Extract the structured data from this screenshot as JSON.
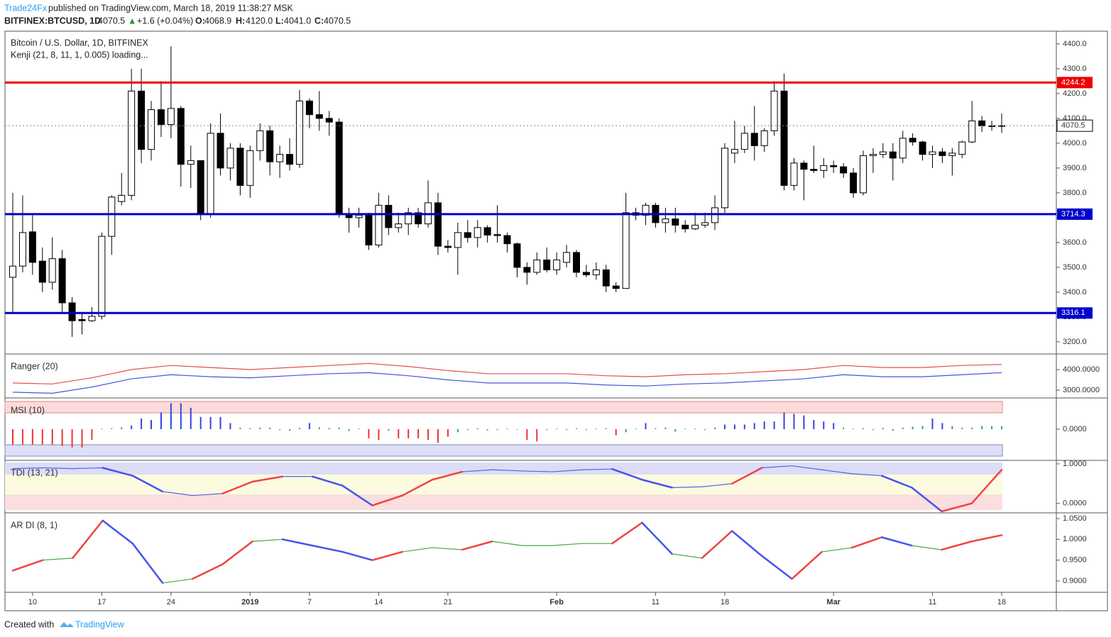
{
  "header": {
    "publisher": "Trade24Fx",
    "published": "published on TradingView.com, March 18, 2019 11:38:27 MSK",
    "symbol": "BITFINEX:BTCUSD, 1D",
    "last": "4070.5",
    "arrow": "▲",
    "change": "+1.6 (+0.04%)",
    "o_label": "O:",
    "o": "4068.9",
    "h_label": "H:",
    "h": "4120.0",
    "l_label": "L:",
    "l": "4041.0",
    "c_label": "C:",
    "c": "4070.5"
  },
  "legend": {
    "name": "Bitcoin / U.S. Dollar, 1D, BITFINEX",
    "study": "Kenji (21, 8, 11, 1, 0.005) loading..."
  },
  "footer": {
    "created": "Created with",
    "brand": "TradingView"
  },
  "chart_data": {
    "type": "candlestick",
    "categories": [
      null,
      null,
      "10",
      null,
      null,
      null,
      null,
      null,
      null,
      "17",
      null,
      null,
      null,
      null,
      null,
      null,
      "24",
      null,
      null,
      null,
      null,
      null,
      null,
      null,
      "2019",
      null,
      null,
      null,
      null,
      null,
      "7",
      null,
      null,
      null,
      null,
      null,
      null,
      "14",
      null,
      null,
      null,
      null,
      null,
      null,
      "21",
      null,
      null,
      null,
      null,
      null,
      null,
      null,
      null,
      null,
      null,
      "Feb",
      null,
      null,
      null,
      null,
      null,
      null,
      null,
      null,
      null,
      "11",
      null,
      null,
      null,
      null,
      null,
      null,
      "18",
      null,
      null,
      null,
      null,
      null,
      null,
      null,
      null,
      null,
      null,
      "Mar",
      null,
      null,
      null,
      null,
      null,
      null,
      null,
      null,
      null,
      "11",
      null,
      null,
      null,
      null,
      null,
      null,
      "18"
    ],
    "open": [
      3460,
      3505,
      3643,
      3525,
      3440,
      3535,
      3357,
      3290,
      3285,
      3303,
      3625,
      3765,
      3790,
      4210,
      3975,
      4135,
      4075,
      4140,
      3915,
      3930,
      3715,
      4040,
      3900,
      3980,
      3830,
      3970,
      4050,
      3925,
      3955,
      3915,
      4170,
      4115,
      4100,
      4085,
      3715,
      3700,
      3710,
      3590,
      3750,
      3660,
      3675,
      3720,
      3675,
      3760,
      3585,
      3580,
      3640,
      3620,
      3660,
      3632,
      3628,
      3595,
      3500,
      3480,
      3530,
      3490,
      3520,
      3560,
      3480,
      3470,
      3490,
      3425,
      3415,
      3720,
      3710,
      3750,
      3680,
      3695,
      3670,
      3655,
      3670,
      3680,
      3740,
      3960,
      3975,
      4040,
      3990,
      4050,
      4210,
      3830,
      3920,
      3895,
      3890,
      3910,
      3905,
      3880,
      3800,
      3950,
      3955,
      3965,
      3940,
      4020,
      4005,
      3955,
      3965,
      3950,
      3955,
      4005,
      4090,
      4070,
      4068.9
    ],
    "high": [
      3800,
      3790,
      3710,
      3580,
      3620,
      3570,
      3380,
      3320,
      3340,
      3640,
      3790,
      3880,
      4300,
      4300,
      4170,
      4250,
      4390,
      4150,
      3990,
      3930,
      4080,
      4120,
      4000,
      4000,
      3990,
      4080,
      4070,
      3990,
      4020,
      4215,
      4180,
      4210,
      4130,
      4100,
      3740,
      3740,
      3720,
      3800,
      3790,
      3720,
      3740,
      3740,
      3850,
      3800,
      3610,
      3680,
      3690,
      3690,
      3670,
      3750,
      3640,
      3600,
      3520,
      3560,
      3580,
      3560,
      3590,
      3570,
      3510,
      3520,
      3510,
      3440,
      3800,
      3740,
      3760,
      3760,
      3740,
      3740,
      3690,
      3720,
      3720,
      3790,
      4000,
      4090,
      4070,
      4150,
      4060,
      4250,
      4280,
      3940,
      3930,
      3990,
      3940,
      3930,
      3920,
      3900,
      3970,
      3980,
      4000,
      4000,
      4050,
      4040,
      4010,
      3990,
      3980,
      3980,
      4010,
      4170,
      4110,
      4090,
      4120
    ],
    "low": [
      3320,
      3480,
      3470,
      3400,
      3410,
      3320,
      3220,
      3230,
      3280,
      3290,
      3550,
      3750,
      3770,
      3920,
      3930,
      4025,
      4020,
      3825,
      3820,
      3690,
      3700,
      3870,
      3850,
      3790,
      3780,
      3930,
      3870,
      3860,
      3890,
      3900,
      4060,
      4050,
      4030,
      3700,
      3640,
      3660,
      3570,
      3580,
      3630,
      3640,
      3630,
      3660,
      3660,
      3550,
      3560,
      3470,
      3600,
      3580,
      3600,
      3600,
      3560,
      3460,
      3430,
      3470,
      3480,
      3470,
      3500,
      3460,
      3460,
      3450,
      3400,
      3400,
      3420,
      3690,
      3670,
      3660,
      3640,
      3640,
      3640,
      3650,
      3660,
      3650,
      3720,
      3920,
      3960,
      3930,
      3965,
      4030,
      3810,
      3810,
      3770,
      3880,
      3860,
      3880,
      3860,
      3780,
      3790,
      3880,
      3940,
      3850,
      3920,
      3990,
      3930,
      3900,
      3920,
      3870,
      3940,
      4000,
      4045,
      4050,
      4041
    ],
    "close": [
      3505,
      3640,
      3520,
      3440,
      3535,
      3357,
      3285,
      3285,
      3303,
      3625,
      3783,
      3790,
      4210,
      3975,
      4135,
      4075,
      4140,
      3915,
      3930,
      3715,
      4040,
      3900,
      3980,
      3830,
      3970,
      4050,
      3925,
      3955,
      3915,
      4170,
      4115,
      4100,
      4085,
      3715,
      3700,
      3710,
      3590,
      3750,
      3660,
      3675,
      3720,
      3675,
      3760,
      3585,
      3580,
      3640,
      3620,
      3660,
      3630,
      3628,
      3595,
      3500,
      3480,
      3530,
      3490,
      3530,
      3560,
      3480,
      3470,
      3490,
      3425,
      3415,
      3720,
      3710,
      3750,
      3680,
      3695,
      3670,
      3655,
      3670,
      3680,
      3740,
      3980,
      3975,
      4040,
      3990,
      4050,
      4210,
      3830,
      3920,
      3895,
      3890,
      3910,
      3905,
      3880,
      3800,
      3950,
      3955,
      3965,
      3940,
      4020,
      4005,
      3955,
      3965,
      3950,
      3960,
      4005,
      4090,
      4070,
      4069,
      4070.5
    ],
    "ylim": [
      3154,
      4451
    ],
    "yticks": [
      {
        "value": 4400,
        "label": "4400.0"
      },
      {
        "value": 4300,
        "label": "4300.0"
      },
      {
        "value": 4200,
        "label": "4200.0"
      },
      {
        "value": 4100,
        "label": "4100.0"
      },
      {
        "value": 4000,
        "label": "4000.0"
      },
      {
        "value": 3900,
        "label": "3900.0"
      },
      {
        "value": 3800,
        "label": "3800.0"
      },
      {
        "value": 3700,
        "label": "3700.0"
      },
      {
        "value": 3600,
        "label": "3600.0"
      },
      {
        "value": 3500,
        "label": "3500.0"
      },
      {
        "value": 3400,
        "label": "3400.0"
      },
      {
        "value": 3300,
        "label": "3300.0"
      },
      {
        "value": 3200,
        "label": "3200.0"
      }
    ],
    "levels": [
      {
        "value": 4244.2,
        "color": "#ee0000"
      },
      {
        "value": 3714.3,
        "color": "#0000cc"
      },
      {
        "value": 3316.1,
        "color": "#0000cc"
      }
    ],
    "current": 4070.5,
    "up_color": "#ffffff",
    "down_color": "#000000",
    "indicators": [
      {
        "name": "Ranger (20)",
        "kind": "lines",
        "ylim": [
          2655,
          4724
        ],
        "yticks": [
          {
            "value": 4000,
            "label": "4000.0000"
          },
          {
            "value": 3000,
            "label": "3000.0000"
          }
        ],
        "series": [
          {
            "color": "#e05050",
            "values": [
              3350,
              3300,
              3600,
              4000,
              4200,
              4100,
              4000,
              4100,
              4200,
              4300,
              4150,
              3950,
              3800,
              3800,
              3800,
              3700,
              3650,
              3750,
              3800,
              3900,
              4000,
              4200,
              4100,
              4100,
              4200,
              4250
            ]
          },
          {
            "color": "#4455dd",
            "values": [
              2900,
              2850,
              3150,
              3550,
              3750,
              3650,
              3600,
              3700,
              3800,
              3850,
              3700,
              3500,
              3350,
              3350,
              3350,
              3250,
              3200,
              3300,
              3350,
              3450,
              3550,
              3750,
              3650,
              3650,
              3750,
              3850
            ]
          }
        ]
      },
      {
        "name": "MSI (10)",
        "kind": "histogram",
        "ylim": [
          -1,
          1
        ],
        "yticks": [
          {
            "value": 0,
            "label": "0.0000"
          }
        ],
        "values": [
          -0.5,
          -0.5,
          -0.5,
          -0.5,
          -0.5,
          -0.55,
          -0.6,
          -0.6,
          -0.35,
          0.02,
          0.03,
          0.06,
          0.12,
          0.35,
          0.3,
          0.55,
          0.85,
          0.85,
          0.7,
          0.4,
          0.4,
          0.4,
          0.2,
          0.05,
          0.03,
          0.05,
          0.05,
          -0.03,
          -0.05,
          0.04,
          0.2,
          0.06,
          0.04,
          0.05,
          -0.06,
          0.02,
          -0.3,
          -0.35,
          -0.05,
          -0.3,
          -0.3,
          -0.3,
          -0.35,
          -0.45,
          -0.25,
          -0.1,
          -0.03,
          0.03,
          -0.04,
          -0.03,
          0.02,
          -0.02,
          -0.35,
          -0.4,
          -0.03,
          0.02,
          -0.03,
          0.03,
          -0.03,
          0.02,
          0.03,
          -0.2,
          -0.1,
          0.02,
          0.2,
          0.03,
          0.05,
          -0.08,
          0.02,
          0.02,
          -0.03,
          0.05,
          0.15,
          0.15,
          0.15,
          0.2,
          0.25,
          0.25,
          0.55,
          0.5,
          0.45,
          0.3,
          0.25,
          0.2,
          0.05,
          0.02,
          0.03,
          -0.03,
          0.04,
          -0.05,
          0.05,
          0.08,
          0.1,
          0.35,
          0.2,
          0.1,
          0.05,
          0.05,
          0.1,
          0.1,
          0.1
        ]
      },
      {
        "name": "TDI (13, 21)",
        "kind": "trend",
        "ylim": [
          -0.22,
          1.07
        ],
        "yticks": [
          {
            "value": 1,
            "label": "1.0000"
          },
          {
            "value": 0,
            "label": "0.0000"
          }
        ],
        "values": [
          0.88,
          0.9,
          0.88,
          0.9,
          0.7,
          0.3,
          0.2,
          0.25,
          0.55,
          0.68,
          0.68,
          0.45,
          -0.05,
          0.2,
          0.6,
          0.8,
          0.85,
          0.82,
          0.8,
          0.85,
          0.87,
          0.6,
          0.4,
          0.42,
          0.5,
          0.9,
          0.95,
          0.85,
          0.75,
          0.7,
          0.4,
          -0.2,
          0.0,
          0.85
        ]
      },
      {
        "name": "AR DI (8, 1)",
        "kind": "trend",
        "ylim": [
          0.8744,
          1.0619
        ],
        "yticks": [
          {
            "value": 1.05,
            "label": "1.0500"
          },
          {
            "value": 1,
            "label": "1.0000"
          },
          {
            "value": 0.95,
            "label": "0.9500"
          },
          {
            "value": 0.9,
            "label": "0.9000"
          }
        ],
        "values": [
          0.925,
          0.95,
          0.955,
          1.045,
          0.99,
          0.895,
          0.905,
          0.94,
          0.995,
          1.0,
          0.985,
          0.97,
          0.95,
          0.97,
          0.98,
          0.975,
          0.995,
          0.985,
          0.985,
          0.99,
          0.99,
          1.04,
          0.965,
          0.955,
          1.02,
          0.96,
          0.905,
          0.97,
          0.98,
          1.005,
          0.985,
          0.975,
          0.995,
          1.01
        ]
      }
    ]
  }
}
